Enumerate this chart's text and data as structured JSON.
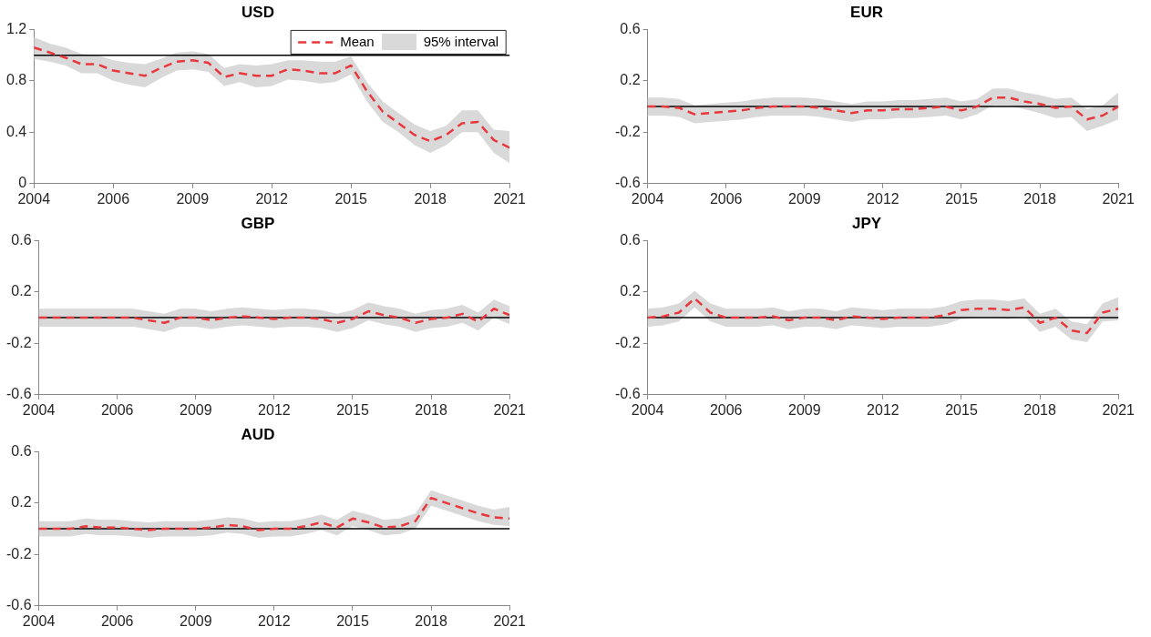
{
  "chart_data": [
    {
      "type": "line",
      "title": "USD",
      "categories": [
        "2004",
        null,
        null,
        null,
        null,
        "2006",
        null,
        null,
        null,
        null,
        "2009",
        null,
        null,
        null,
        null,
        "2012",
        null,
        null,
        null,
        null,
        "2015",
        null,
        null,
        null,
        null,
        "2018",
        null,
        null,
        null,
        null,
        "2021"
      ],
      "ylim": [
        0,
        1.2
      ],
      "yticks": [
        0,
        0.4,
        0.8,
        1.2
      ],
      "marker": "none",
      "legend": "top right",
      "annotations": [
        "95% interval"
      ],
      "ref_lines": [
        {
          "axis": "y",
          "value": 1,
          "color": "#000000"
        }
      ],
      "series": [
        {
          "name": "Mean",
          "color": "#e8383d",
          "line_style": "dashed",
          "values": [
            1.06,
            1.02,
            0.98,
            0.93,
            0.93,
            0.88,
            0.86,
            0.84,
            0.9,
            0.95,
            0.96,
            0.94,
            0.83,
            0.86,
            0.84,
            0.84,
            0.89,
            0.88,
            0.86,
            0.86,
            0.92,
            0.72,
            0.56,
            0.47,
            0.38,
            0.33,
            0.38,
            0.47,
            0.48,
            0.34,
            0.28
          ],
          "lower": [
            0.97,
            0.95,
            0.92,
            0.86,
            0.86,
            0.8,
            0.77,
            0.75,
            0.82,
            0.88,
            0.89,
            0.87,
            0.76,
            0.79,
            0.75,
            0.76,
            0.81,
            0.8,
            0.78,
            0.79,
            0.85,
            0.64,
            0.48,
            0.4,
            0.3,
            0.24,
            0.3,
            0.4,
            0.4,
            0.24,
            0.16
          ],
          "upper": [
            1.14,
            1.09,
            1.06,
            1.01,
            1.0,
            0.96,
            0.94,
            0.93,
            0.97,
            1.02,
            1.03,
            1.01,
            0.9,
            0.93,
            0.92,
            0.93,
            0.96,
            0.96,
            0.95,
            0.95,
            0.99,
            0.79,
            0.64,
            0.55,
            0.46,
            0.41,
            0.45,
            0.57,
            0.57,
            0.42,
            0.41
          ]
        }
      ]
    },
    {
      "type": "line",
      "title": "EUR",
      "categories": [
        "2004",
        null,
        null,
        null,
        null,
        "2006",
        null,
        null,
        null,
        null,
        "2009",
        null,
        null,
        null,
        null,
        "2012",
        null,
        null,
        null,
        null,
        "2015",
        null,
        null,
        null,
        null,
        "2018",
        null,
        null,
        null,
        null,
        "2021"
      ],
      "ylim": [
        -0.6,
        0.6
      ],
      "yticks": [
        -0.6,
        -0.2,
        0.2,
        0.6
      ],
      "marker": "none",
      "ref_lines": [
        {
          "axis": "y",
          "value": 0,
          "color": "#000000"
        }
      ],
      "series": [
        {
          "color": "#e8383d",
          "line_style": "dashed",
          "values": [
            0,
            0,
            -0.01,
            -0.06,
            -0.05,
            -0.04,
            -0.03,
            -0.01,
            0,
            0,
            0,
            -0.01,
            -0.03,
            -0.05,
            -0.03,
            -0.03,
            -0.02,
            -0.02,
            -0.01,
            0,
            -0.03,
            0,
            0.07,
            0.07,
            0.04,
            0.02,
            -0.01,
            0,
            -0.1,
            -0.07,
            0
          ],
          "lower": [
            -0.07,
            -0.07,
            -0.08,
            -0.13,
            -0.12,
            -0.11,
            -0.1,
            -0.08,
            -0.07,
            -0.07,
            -0.07,
            -0.08,
            -0.1,
            -0.12,
            -0.1,
            -0.1,
            -0.09,
            -0.09,
            -0.08,
            -0.07,
            -0.1,
            -0.06,
            0.01,
            0.01,
            -0.02,
            -0.05,
            -0.09,
            -0.08,
            -0.19,
            -0.15,
            -0.1
          ],
          "upper": [
            0.07,
            0.07,
            0.06,
            0.01,
            0.02,
            0.03,
            0.04,
            0.06,
            0.07,
            0.07,
            0.07,
            0.06,
            0.04,
            0.02,
            0.04,
            0.04,
            0.05,
            0.05,
            0.06,
            0.07,
            0.04,
            0.06,
            0.14,
            0.14,
            0.11,
            0.09,
            0.06,
            0.07,
            -0.02,
            0.01,
            0.11
          ]
        }
      ]
    },
    {
      "type": "line",
      "title": "GBP",
      "categories": [
        "2004",
        null,
        null,
        null,
        null,
        "2006",
        null,
        null,
        null,
        null,
        "2009",
        null,
        null,
        null,
        null,
        "2012",
        null,
        null,
        null,
        null,
        "2015",
        null,
        null,
        null,
        null,
        "2018",
        null,
        null,
        null,
        null,
        "2021"
      ],
      "ylim": [
        -0.6,
        0.6
      ],
      "yticks": [
        -0.6,
        -0.2,
        0.2,
        0.6
      ],
      "marker": "none",
      "ref_lines": [
        {
          "axis": "y",
          "value": 0,
          "color": "#000000"
        }
      ],
      "series": [
        {
          "color": "#e8383d",
          "line_style": "dashed",
          "values": [
            0,
            0,
            0,
            0,
            0,
            0,
            0,
            -0.02,
            -0.04,
            0,
            0,
            -0.02,
            0,
            0.01,
            0,
            -0.01,
            0,
            0,
            -0.01,
            -0.04,
            -0.01,
            0.05,
            0.02,
            0,
            -0.04,
            -0.01,
            0,
            0.03,
            -0.03,
            0.07,
            0.02
          ],
          "lower": [
            -0.07,
            -0.07,
            -0.07,
            -0.07,
            -0.07,
            -0.07,
            -0.07,
            -0.09,
            -0.11,
            -0.07,
            -0.07,
            -0.09,
            -0.07,
            -0.06,
            -0.07,
            -0.08,
            -0.07,
            -0.07,
            -0.08,
            -0.11,
            -0.08,
            -0.02,
            -0.05,
            -0.07,
            -0.11,
            -0.08,
            -0.07,
            -0.04,
            -0.1,
            0,
            -0.05
          ],
          "upper": [
            0.07,
            0.07,
            0.07,
            0.07,
            0.07,
            0.07,
            0.07,
            0.05,
            0.03,
            0.07,
            0.07,
            0.05,
            0.07,
            0.08,
            0.07,
            0.06,
            0.07,
            0.07,
            0.06,
            0.03,
            0.06,
            0.12,
            0.09,
            0.07,
            0.03,
            0.06,
            0.07,
            0.1,
            0.04,
            0.14,
            0.09
          ]
        }
      ]
    },
    {
      "type": "line",
      "title": "JPY",
      "categories": [
        "2004",
        null,
        null,
        null,
        null,
        "2006",
        null,
        null,
        null,
        null,
        "2009",
        null,
        null,
        null,
        null,
        "2012",
        null,
        null,
        null,
        null,
        "2015",
        null,
        null,
        null,
        null,
        "2018",
        null,
        null,
        null,
        null,
        "2021"
      ],
      "ylim": [
        -0.6,
        0.6
      ],
      "yticks": [
        -0.6,
        -0.2,
        0.2,
        0.6
      ],
      "marker": "none",
      "ref_lines": [
        {
          "axis": "y",
          "value": 0,
          "color": "#000000"
        }
      ],
      "series": [
        {
          "color": "#e8383d",
          "line_style": "dashed",
          "values": [
            0,
            0.01,
            0.04,
            0.15,
            0.04,
            0,
            0,
            0,
            0.01,
            -0.02,
            0,
            0,
            -0.02,
            0.01,
            0,
            -0.01,
            0,
            0,
            0,
            0.02,
            0.06,
            0.07,
            0.07,
            0.06,
            0.08,
            -0.04,
            0,
            -0.1,
            -0.12,
            0.04,
            0.07
          ],
          "lower": [
            -0.07,
            -0.06,
            -0.03,
            0.08,
            -0.03,
            -0.07,
            -0.07,
            -0.07,
            -0.06,
            -0.09,
            -0.07,
            -0.07,
            -0.09,
            -0.06,
            -0.07,
            -0.08,
            -0.07,
            -0.07,
            -0.07,
            -0.05,
            -0.01,
            0,
            0,
            -0.01,
            0.01,
            -0.11,
            -0.07,
            -0.17,
            -0.19,
            -0.03,
            -0.02
          ],
          "upper": [
            0.07,
            0.08,
            0.11,
            0.21,
            0.11,
            0.07,
            0.07,
            0.07,
            0.08,
            0.05,
            0.07,
            0.07,
            0.05,
            0.08,
            0.07,
            0.06,
            0.07,
            0.07,
            0.07,
            0.09,
            0.13,
            0.14,
            0.14,
            0.13,
            0.15,
            0.03,
            0.07,
            -0.03,
            -0.05,
            0.11,
            0.16
          ]
        }
      ]
    },
    {
      "type": "line",
      "title": "AUD",
      "categories": [
        "2004",
        null,
        null,
        null,
        null,
        "2006",
        null,
        null,
        null,
        null,
        "2009",
        null,
        null,
        null,
        null,
        "2012",
        null,
        null,
        null,
        null,
        "2015",
        null,
        null,
        null,
        null,
        "2018",
        null,
        null,
        null,
        null,
        "2021"
      ],
      "ylim": [
        -0.6,
        0.6
      ],
      "yticks": [
        -0.6,
        -0.2,
        0.2,
        0.6
      ],
      "marker": "none",
      "ref_lines": [
        {
          "axis": "y",
          "value": 0,
          "color": "#000000"
        }
      ],
      "series": [
        {
          "color": "#e8383d",
          "line_style": "dashed",
          "values": [
            0,
            0,
            0,
            0.02,
            0.01,
            0.01,
            0,
            -0.01,
            0,
            0,
            0,
            0.01,
            0.03,
            0.02,
            -0.01,
            0,
            0,
            0.02,
            0.05,
            0.01,
            0.08,
            0.05,
            0.01,
            0.02,
            0.06,
            0.24,
            0.2,
            0.16,
            0.12,
            0.09,
            0.08
          ],
          "lower": [
            -0.06,
            -0.06,
            -0.06,
            -0.04,
            -0.05,
            -0.05,
            -0.06,
            -0.07,
            -0.06,
            -0.06,
            -0.06,
            -0.05,
            -0.03,
            -0.04,
            -0.07,
            -0.06,
            -0.06,
            -0.04,
            -0.01,
            -0.05,
            0.02,
            -0.01,
            -0.05,
            -0.04,
            0,
            0.18,
            0.14,
            0.1,
            0.06,
            0.03,
            0.02
          ],
          "upper": [
            0.06,
            0.06,
            0.06,
            0.08,
            0.07,
            0.07,
            0.06,
            0.05,
            0.06,
            0.06,
            0.06,
            0.07,
            0.09,
            0.08,
            0.05,
            0.06,
            0.06,
            0.08,
            0.11,
            0.07,
            0.14,
            0.11,
            0.07,
            0.08,
            0.12,
            0.3,
            0.26,
            0.22,
            0.18,
            0.15,
            0.17
          ]
        }
      ]
    }
  ]
}
